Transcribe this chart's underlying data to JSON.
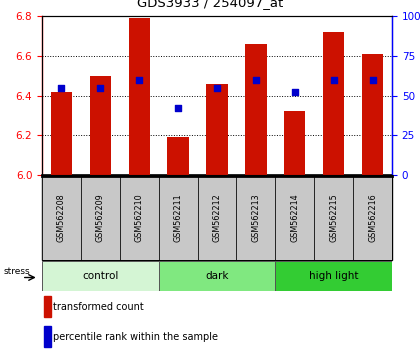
{
  "title": "GDS3933 / 254097_at",
  "samples": [
    "GSM562208",
    "GSM562209",
    "GSM562210",
    "GSM562211",
    "GSM562212",
    "GSM562213",
    "GSM562214",
    "GSM562215",
    "GSM562216"
  ],
  "red_values": [
    6.42,
    6.5,
    6.79,
    6.19,
    6.46,
    6.66,
    6.32,
    6.72,
    6.61
  ],
  "blue_percentile": [
    55,
    55,
    60,
    42,
    55,
    60,
    52,
    60,
    60
  ],
  "ylim_left": [
    6.0,
    6.8
  ],
  "ylim_right": [
    0,
    100
  ],
  "yticks_left": [
    6.0,
    6.2,
    6.4,
    6.6,
    6.8
  ],
  "yticks_right": [
    0,
    25,
    50,
    75,
    100
  ],
  "groups": [
    {
      "label": "control",
      "start": 0,
      "end": 3,
      "color": "#d4f5d4"
    },
    {
      "label": "dark",
      "start": 3,
      "end": 6,
      "color": "#80e880"
    },
    {
      "label": "high light",
      "start": 6,
      "end": 9,
      "color": "#33cc33"
    }
  ],
  "stress_label": "stress",
  "bar_color": "#cc1100",
  "dot_color": "#0000cc",
  "base_value": 6.0,
  "background_color": "#ffffff",
  "plot_bg_color": "#ffffff",
  "sample_bg_color": "#c8c8c8",
  "legend_red_label": "transformed count",
  "legend_blue_label": "percentile rank within the sample",
  "bar_width": 0.55
}
